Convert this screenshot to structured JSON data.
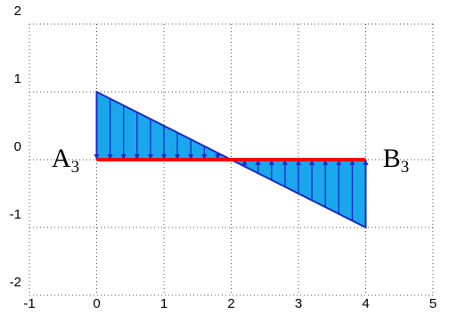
{
  "figure": {
    "axes": {
      "x_ticks": [
        "-1",
        "0",
        "1",
        "2",
        "3",
        "4",
        "5"
      ],
      "y_ticks": [
        "2",
        "1",
        "0",
        "-1",
        "-2"
      ],
      "xlim": [
        -1,
        5
      ],
      "ylim": [
        -2,
        2
      ],
      "grid": "dotted"
    },
    "beam": {
      "start": 0,
      "end": 4,
      "color": "#ff0000",
      "left_label": {
        "main": "A",
        "sub": "3"
      },
      "right_label": {
        "main": "B",
        "sub": "3"
      }
    },
    "distributed_load": {
      "fill_color": "#1aa7ec",
      "line_color": "#1a28c8",
      "q_start": 1,
      "q_end": -1,
      "zero_crossing_x": 2,
      "arrow_count": 21
    }
  }
}
